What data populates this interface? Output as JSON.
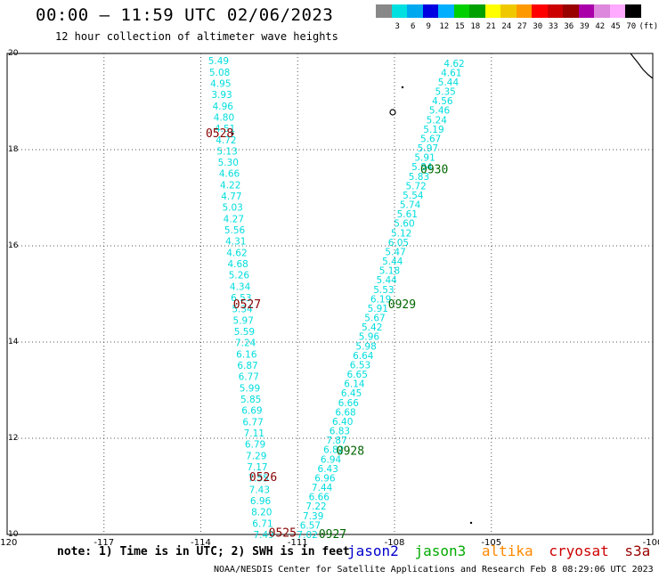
{
  "header": {
    "title": "00:00 – 11:59 UTC 02/06/2023",
    "subtitle": "12 hour collection of altimeter wave heights"
  },
  "footer": {
    "note": "note: 1) Time is in UTC; 2) SWH is in feet",
    "credits": "NOAA/NESDIS Center for Satellite Applications and Research   Feb  8 08:29:06 UTC 2023"
  },
  "satellites": [
    {
      "name": "jason2",
      "color": "#0000cc"
    },
    {
      "name": "jason3",
      "color": "#00aa00"
    },
    {
      "name": "altika",
      "color": "#ff8800"
    },
    {
      "name": "cryosat",
      "color": "#cc0000"
    },
    {
      "name": "s3a",
      "color": "#990000"
    }
  ],
  "colorbar": {
    "colors": [
      "#888888",
      "#00e0e0",
      "#00a8f0",
      "#0000e0",
      "#00b0ff",
      "#00d000",
      "#00a000",
      "#ffff00",
      "#f0c800",
      "#ff9900",
      "#ff0000",
      "#cc0000",
      "#990000",
      "#aa00aa",
      "#dd88dd",
      "#ffaaff",
      "#000000"
    ],
    "labels": [
      "",
      "3",
      "6",
      "9",
      "12",
      "15",
      "18",
      "21",
      "24",
      "27",
      "30",
      "33",
      "36",
      "39",
      "42",
      "45",
      "70",
      "(ft)"
    ]
  },
  "chart_data": {
    "type": "scatter",
    "title": "00:00 – 11:59 UTC 02/06/2023",
    "xlim": [
      -120,
      -100
    ],
    "ylim": [
      10,
      20
    ],
    "x_ticks": [
      -120,
      -117,
      -114,
      -111,
      -108,
      -105
    ],
    "y_ticks": [
      10,
      12,
      14,
      16,
      18,
      20
    ],
    "grid": true,
    "units": "ft",
    "tracks": [
      {
        "name": "track-west",
        "color": "#00dddd",
        "start": [
          -113.45,
          19.85
        ],
        "end": [
          -112.05,
          10.0
        ],
        "values": [
          "5.49",
          "5.08",
          "4.95",
          "3.93",
          "4.96",
          "4.80",
          "4.51",
          "4.72",
          "5.13",
          "5.30",
          "4.66",
          "4.22",
          "4.77",
          "5.03",
          "4.27",
          "5.56",
          "4.31",
          "4.62",
          "4.68",
          "5.26",
          "4.34",
          "6.53",
          "5.34",
          "5.97",
          "5.59",
          "7.24",
          "6.16",
          "6.87",
          "6.77",
          "5.99",
          "5.85",
          "6.69",
          "6.77",
          "7.11",
          "6.79",
          "7.29",
          "7.17",
          "7.55",
          "7.43",
          "6.96",
          "8.20",
          "6.71",
          "7.49"
        ]
      },
      {
        "name": "track-east",
        "color": "#00dddd",
        "start": [
          -106.15,
          19.8
        ],
        "end": [
          -110.7,
          10.0
        ],
        "values": [
          "4.62",
          "4.61",
          "5.44",
          "5.35",
          "4.56",
          "5.46",
          "5.24",
          "5.19",
          "5.67",
          "5.97",
          "5.91",
          "5.84",
          "5.83",
          "5.72",
          "5.54",
          "5.74",
          "5.61",
          "5.60",
          "5.12",
          "6.05",
          "5.47",
          "5.44",
          "5.18",
          "5.44",
          "5.53",
          "6.19",
          "5.91",
          "5.67",
          "5.42",
          "5.96",
          "5.98",
          "6.64",
          "6.53",
          "6.65",
          "6.14",
          "6.45",
          "6.66",
          "6.68",
          "6.40",
          "6.83",
          "7.87",
          "6.82",
          "6.94",
          "6.43",
          "6.96",
          "7.44",
          "6.66",
          "7.22",
          "7.39",
          "6.57",
          "7.02"
        ]
      }
    ],
    "time_labels": [
      {
        "text": "0528",
        "color": "#880000",
        "x": -113.85,
        "y": 18.35
      },
      {
        "text": "0527",
        "color": "#880000",
        "x": -113.0,
        "y": 14.8
      },
      {
        "text": "0526",
        "color": "#880000",
        "x": -112.5,
        "y": 11.2
      },
      {
        "text": "0525",
        "color": "#880000",
        "x": -111.9,
        "y": 10.05
      },
      {
        "text": "0930",
        "color": "#006600",
        "x": -107.2,
        "y": 17.6
      },
      {
        "text": "0929",
        "color": "#006600",
        "x": -108.2,
        "y": 14.8
      },
      {
        "text": "0928",
        "color": "#006600",
        "x": -109.8,
        "y": 11.75
      },
      {
        "text": "0927",
        "color": "#006600",
        "x": -110.35,
        "y": 10.02
      }
    ]
  }
}
